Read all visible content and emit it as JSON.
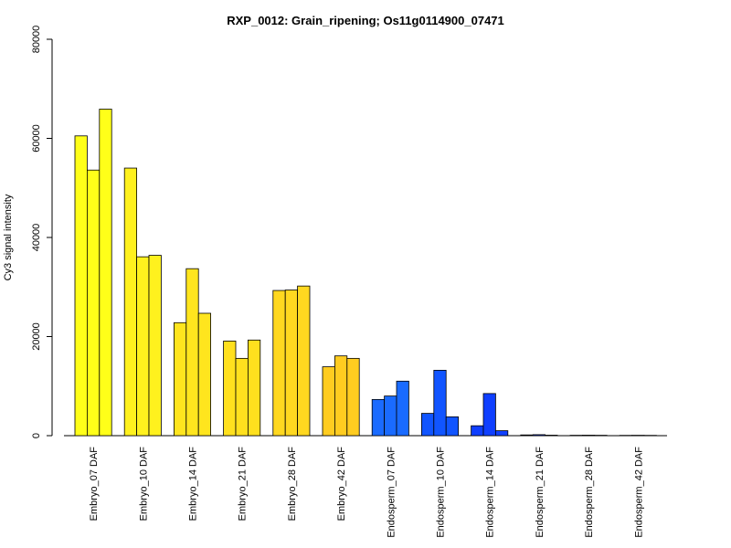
{
  "chart_data": {
    "type": "bar",
    "title": "RXP_0012: Grain_ripening; Os11g0114900_07471",
    "xlabel": "",
    "ylabel": "Cy3 signal intensity",
    "ylim": [
      0,
      80000
    ],
    "yticks": [
      0,
      20000,
      40000,
      60000,
      80000
    ],
    "grid": false,
    "categories": [
      "Embryo_07 DAF",
      "Embryo_10 DAF",
      "Embryo_14 DAF",
      "Embryo_21 DAF",
      "Embryo_28 DAF",
      "Embryo_42 DAF",
      "Endosperm_07 DAF",
      "Endosperm_10 DAF",
      "Endosperm_14 DAF",
      "Endosperm_21 DAF",
      "Endosperm_28 DAF",
      "Endosperm_42 DAF"
    ],
    "colors": [
      "#FFFF19",
      "#FFF11E",
      "#FFE51E",
      "#FFE01E",
      "#FFD820",
      "#FFCC20",
      "#1A6BFF",
      "#1155FF",
      "#0F3FFF",
      "#0C33FF",
      "#0A2BFF",
      "#0822FF"
    ],
    "values": [
      [
        60500,
        53600,
        65900
      ],
      [
        54000,
        36100,
        36400
      ],
      [
        22800,
        33700,
        24700
      ],
      [
        19100,
        15600,
        19300
      ],
      [
        29300,
        29400,
        30200
      ],
      [
        13900,
        16100,
        15600
      ],
      [
        7300,
        8000,
        11000
      ],
      [
        4500,
        13200,
        3800
      ],
      [
        2000,
        8500,
        1000
      ],
      [
        150,
        200,
        100
      ],
      [
        80,
        100,
        80
      ],
      [
        60,
        80,
        60
      ]
    ]
  }
}
